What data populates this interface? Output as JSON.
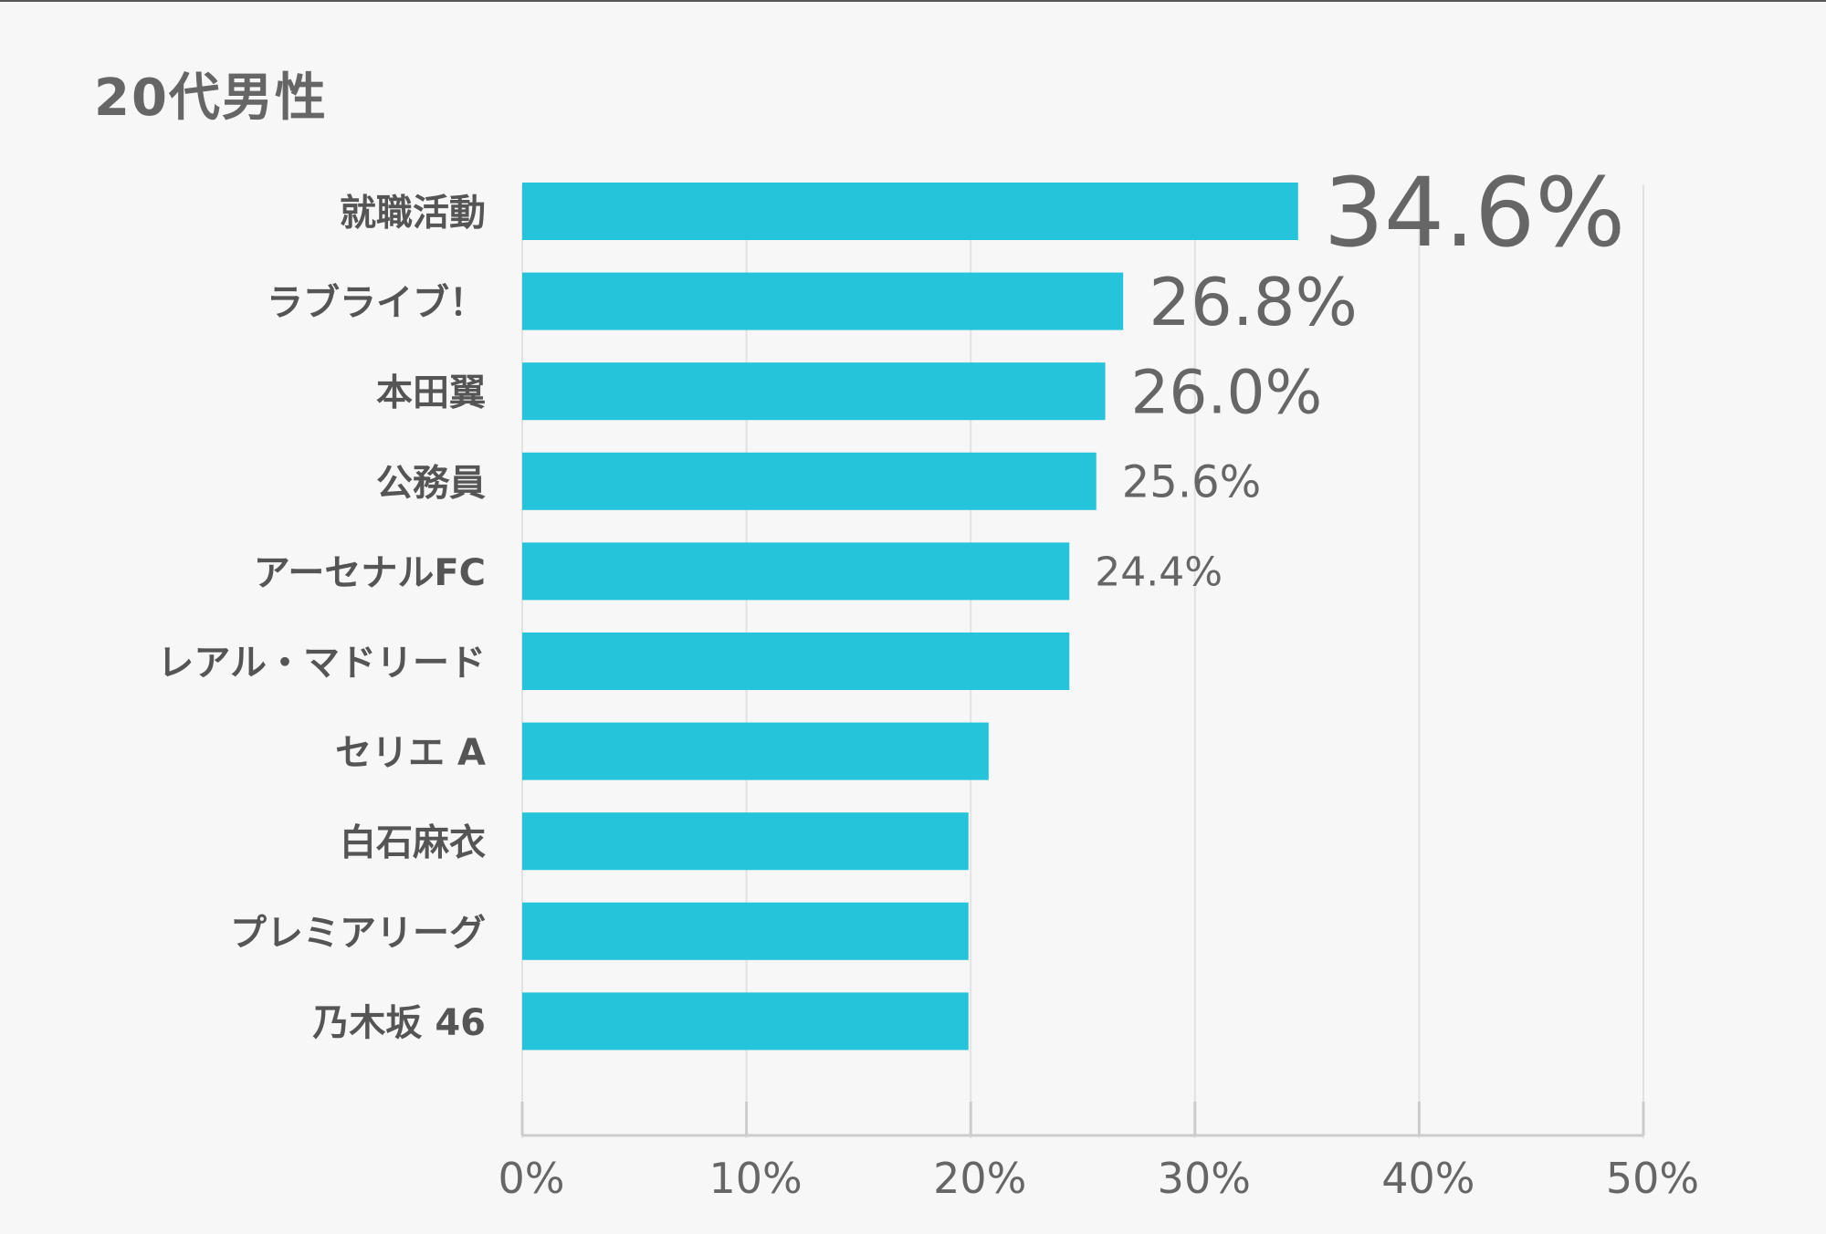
{
  "chart_data": {
    "type": "bar",
    "orientation": "horizontal",
    "title": "20代男性",
    "categories": [
      "就職活動",
      "ラブライブ！",
      "本田翼",
      "公務員",
      "アーセナルFC",
      "レアル・マドリード",
      "セリエ A",
      "白石麻衣",
      "プレミアリーグ",
      "乃木坂 46"
    ],
    "values": [
      34.6,
      26.8,
      26.0,
      25.6,
      24.4,
      24.4,
      20.8,
      19.9,
      19.9,
      19.9
    ],
    "data_labels": [
      "34.6%",
      "26.8%",
      "26.0%",
      "25.6%",
      "24.4%",
      "",
      "",
      "",
      "",
      ""
    ],
    "xlim": [
      0,
      50
    ],
    "x_ticks": [
      0,
      10,
      20,
      30,
      40,
      50
    ],
    "x_tick_labels": [
      "0%",
      "10%",
      "20%",
      "30%",
      "40%",
      "50%"
    ],
    "grid": "vertical",
    "bar_color": "#26c4da",
    "text_color": "#666666",
    "axis_color": "#cccccc"
  }
}
